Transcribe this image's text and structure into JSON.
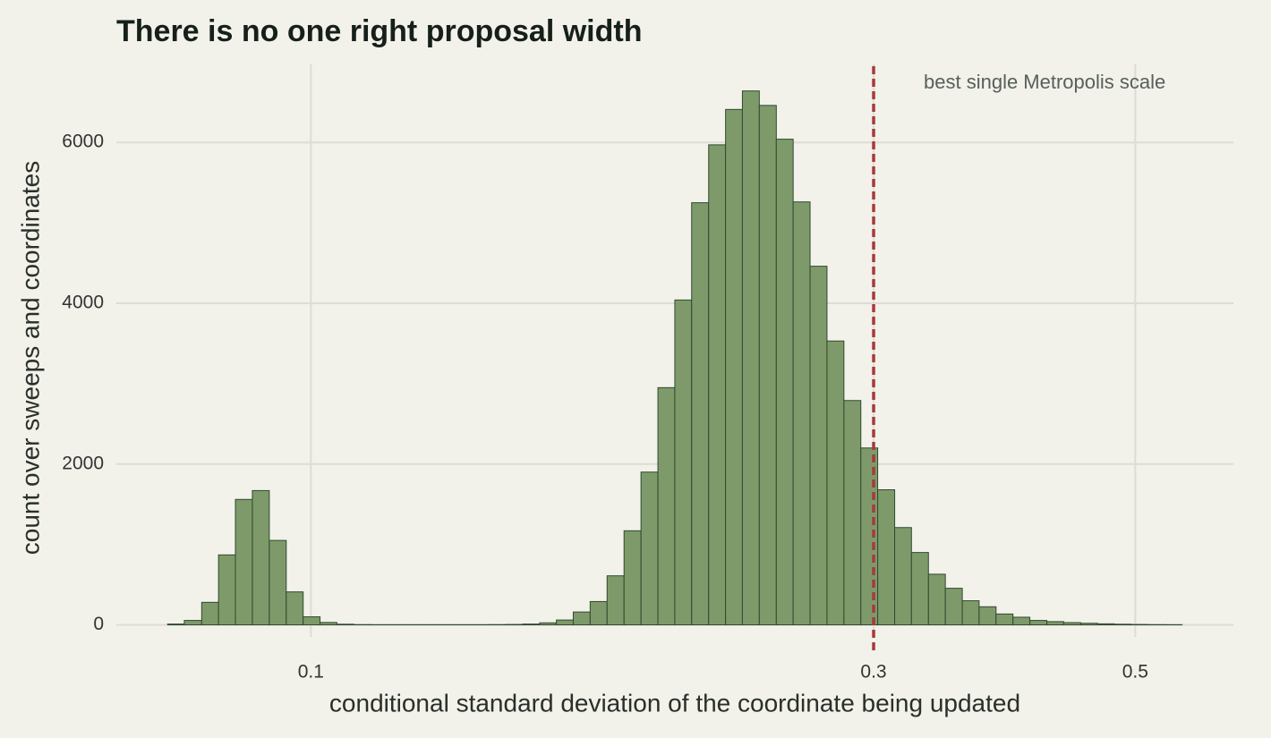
{
  "chart_data": {
    "type": "histogram",
    "title": "There is no one right proposal width",
    "x_label": "conditional standard deviation of the coordinate being updated",
    "y_label": "count over sweeps and coordinates",
    "x_scale": "log",
    "grid": true,
    "color": "#7e9a6a",
    "edge_color": "#2f4a2f",
    "bins": [
      0.0756,
      0.0781,
      0.0808,
      0.0835,
      0.0863,
      0.0892,
      0.0922,
      0.0953,
      0.0985,
      0.1018,
      0.1052,
      0.1087,
      0.1124,
      0.1161,
      0.12,
      0.124,
      0.1282,
      0.1325,
      0.137,
      0.1415,
      0.1463,
      0.1512,
      0.1563,
      0.1615,
      0.1669,
      0.1725,
      0.1783,
      0.1843,
      0.1905,
      0.1969,
      0.2035,
      0.2103,
      0.2174,
      0.2247,
      0.2322,
      0.24,
      0.2481,
      0.2564,
      0.265,
      0.2739,
      0.2831,
      0.2926,
      0.3024,
      0.3126,
      0.323,
      0.3339,
      0.3451,
      0.3567,
      0.3686,
      0.381,
      0.3938,
      0.407,
      0.4207,
      0.4348,
      0.4494,
      0.4645,
      0.48,
      0.4962,
      0.5128,
      0.53,
      0.5478
    ],
    "counts": [
      10,
      55,
      280,
      870,
      1560,
      1670,
      1050,
      410,
      100,
      30,
      8,
      3,
      2,
      2,
      2,
      2,
      2,
      2,
      2,
      3,
      5,
      10,
      25,
      60,
      160,
      290,
      610,
      1170,
      1900,
      2950,
      4040,
      5250,
      5970,
      6410,
      6640,
      6460,
      6040,
      5260,
      4460,
      3530,
      2790,
      2200,
      1680,
      1210,
      900,
      630,
      455,
      300,
      225,
      135,
      95,
      55,
      40,
      28,
      20,
      13,
      8,
      5,
      3,
      2
    ],
    "xlim": [
      0.0684,
      0.6056
    ],
    "ylim": [
      -150,
      6970
    ],
    "xticks": [
      0.1,
      0.3,
      0.5
    ],
    "yticks": [
      0,
      2000,
      4000,
      6000
    ],
    "reference_line": {
      "x": 0.3,
      "color": "#a63a3a",
      "label": "best single Metropolis scale"
    }
  }
}
